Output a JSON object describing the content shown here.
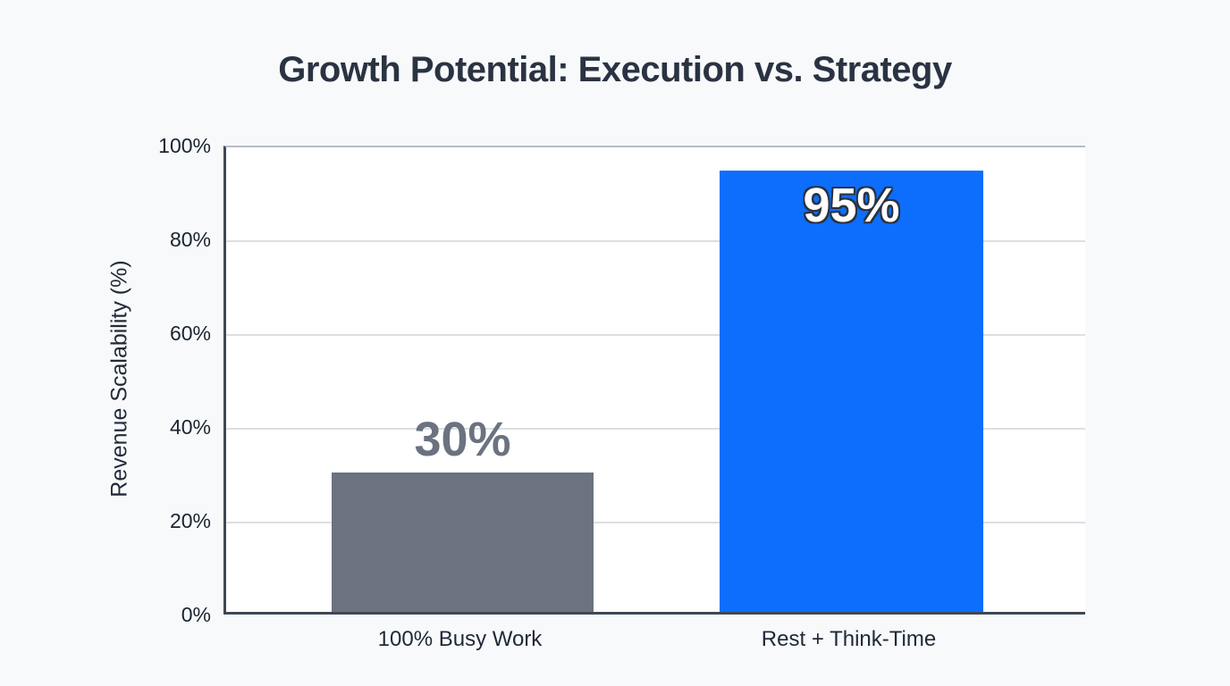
{
  "chart_data": {
    "type": "bar",
    "title": "Growth Potential: Execution vs. Strategy",
    "xlabel": "",
    "ylabel": "Revenue Scalability (%)",
    "categories": [
      "100% Busy Work",
      "Rest + Think-Time"
    ],
    "values": [
      30,
      95
    ],
    "value_labels": [
      "30%",
      "95%"
    ],
    "value_label_positions": [
      "above",
      "inside"
    ],
    "value_label_colors": [
      "#6b7280",
      "#ffffff"
    ],
    "bar_colors": [
      "#6b7280",
      "#0d6efd"
    ],
    "ylim": [
      0,
      100
    ],
    "yticks": [
      "100%",
      "80%",
      "60%",
      "40%",
      "20%",
      "0%"
    ],
    "grid": true,
    "legend_position": "none"
  },
  "colors": {
    "page_background": "#f7f9fb",
    "plot_background": "#ffffff",
    "title_text": "#2a3342",
    "axis_line": "#3f4854",
    "gridline": "#dbdfe4",
    "top_gridline": "#b6bcc4",
    "tick_label_text": "#1b2430",
    "category_label_text": "#1f2937"
  }
}
